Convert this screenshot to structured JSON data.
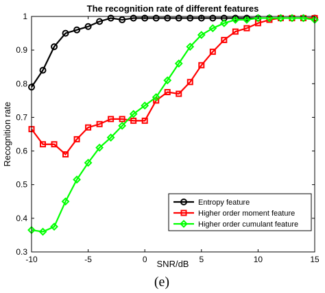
{
  "chart_data": {
    "type": "line",
    "title": "The recognition rate of different features",
    "xlabel": "SNR/dB",
    "ylabel": "Recognition rate",
    "xlim": [
      -10,
      15
    ],
    "ylim": [
      0.3,
      1.0
    ],
    "xticks": [
      -10,
      -5,
      0,
      5,
      10,
      15
    ],
    "yticks": [
      0.3,
      0.4,
      0.5,
      0.6,
      0.7,
      0.8,
      0.9,
      1.0
    ],
    "ytick_labels": [
      "0.3",
      "0.4",
      "0.5",
      "0.6",
      "0.7",
      "0.8",
      "0.9",
      "1"
    ],
    "grid": false,
    "legend_position": "bottom-right",
    "x": [
      -10,
      -9,
      -8,
      -7,
      -6,
      -5,
      -4,
      -3,
      -2,
      -1,
      0,
      1,
      2,
      3,
      4,
      5,
      6,
      7,
      8,
      9,
      10,
      11,
      12,
      13,
      14,
      15
    ],
    "series": [
      {
        "name": "Entropy feature",
        "color": "#000000",
        "marker": "circle",
        "values": [
          0.79,
          0.84,
          0.91,
          0.95,
          0.96,
          0.97,
          0.985,
          0.995,
          0.99,
          0.995,
          0.995,
          0.995,
          0.995,
          0.995,
          0.995,
          0.995,
          0.995,
          0.995,
          0.995,
          0.995,
          0.995,
          0.995,
          0.995,
          0.995,
          0.995,
          0.995
        ]
      },
      {
        "name": "Higher order moment feature",
        "color": "#ff0000",
        "marker": "square",
        "values": [
          0.665,
          0.62,
          0.62,
          0.59,
          0.635,
          0.67,
          0.68,
          0.695,
          0.695,
          0.69,
          0.69,
          0.75,
          0.775,
          0.77,
          0.805,
          0.855,
          0.895,
          0.93,
          0.955,
          0.965,
          0.98,
          0.99,
          0.995,
          0.995,
          0.995,
          0.995
        ]
      },
      {
        "name": "Higher order cumulant feature",
        "color": "#00ff00",
        "marker": "diamond",
        "values": [
          0.365,
          0.36,
          0.375,
          0.45,
          0.515,
          0.565,
          0.61,
          0.64,
          0.675,
          0.71,
          0.735,
          0.76,
          0.81,
          0.86,
          0.91,
          0.945,
          0.965,
          0.98,
          0.99,
          0.99,
          0.995,
          0.995,
          0.995,
          0.995,
          0.995,
          0.99
        ]
      }
    ]
  },
  "panel_label": "(e)"
}
